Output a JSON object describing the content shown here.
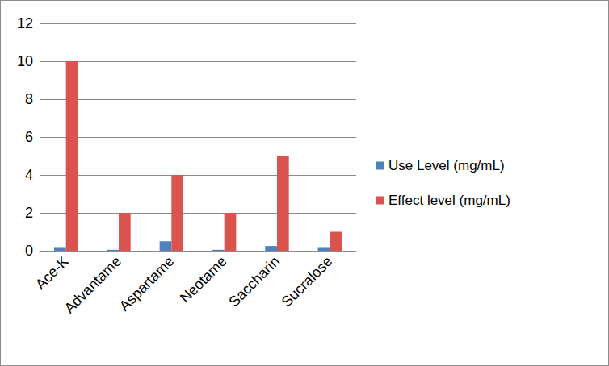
{
  "chart_data": {
    "type": "bar",
    "categories": [
      "Ace-K",
      "Advantame",
      "Aspartame",
      "Neotame",
      "Saccharin",
      "Sucralose"
    ],
    "series": [
      {
        "name": "Use Level (mg/mL)",
        "color": "#4f81bd",
        "values": [
          0.15,
          0.05,
          0.5,
          0.05,
          0.25,
          0.15
        ]
      },
      {
        "name": "Effect level (mg/mL)",
        "color": "#d9534f",
        "values": [
          10,
          2,
          4,
          2,
          5,
          1
        ]
      }
    ],
    "ylim": [
      0,
      12
    ],
    "yticks": [
      0,
      2,
      4,
      6,
      8,
      10,
      12
    ],
    "grid": true,
    "legend": "right"
  }
}
